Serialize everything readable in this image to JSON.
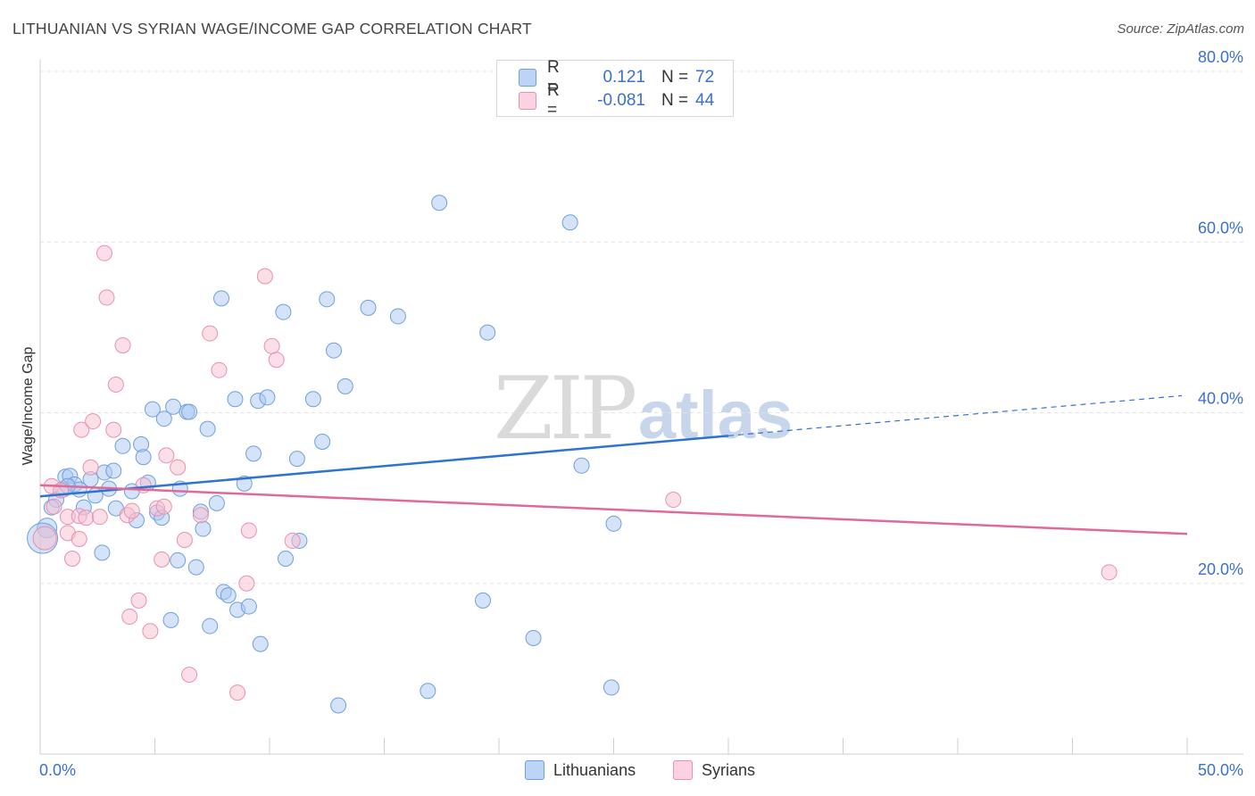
{
  "title": "LITHUANIAN VS SYRIAN WAGE/INCOME GAP CORRELATION CHART",
  "source": "Source: ZipAtlas.com",
  "watermark": {
    "zip": "ZIP",
    "atlas": "atlas"
  },
  "legend": {
    "series": [
      {
        "r_label": "R =",
        "r_value": "0.121",
        "n_label": "N =",
        "n_value": "72"
      },
      {
        "r_label": "R =",
        "r_value": "-0.081",
        "n_label": "N =",
        "n_value": "44"
      }
    ]
  },
  "bottom_legend": [
    "Lithuanians",
    "Syrians"
  ],
  "colors": {
    "lith_fill": "#a9c8f2",
    "lith_stroke": "#6f9fdc",
    "lith_line": "#2e72d2",
    "syr_fill": "#f7bfd0",
    "syr_stroke": "#ea8fae",
    "syr_line": "#e0699a",
    "axis_text": "#3a6fd2",
    "grid": "#e3e3e3"
  },
  "chart_data": {
    "type": "scatter",
    "title": "LITHUANIAN VS SYRIAN WAGE/INCOME GAP CORRELATION CHART",
    "xlabel": "",
    "ylabel": "Wage/Income Gap",
    "xlim": [
      0,
      50
    ],
    "ylim": [
      0,
      80
    ],
    "x_tick_labels": [
      "0.0%",
      "50.0%"
    ],
    "y_ticks": [
      20,
      40,
      60,
      80
    ],
    "y_tick_labels": [
      "20.0%",
      "40.0%",
      "60.0%",
      "80.0%"
    ],
    "grid": true,
    "legend_position": "top-center",
    "series": [
      {
        "name": "Lithuanians",
        "r": 0.121,
        "n": 72,
        "trend": {
          "x0": 0,
          "y0": 30.2,
          "x1": 30,
          "y1": 37.3,
          "dashed_to_x": 50,
          "dashed_to_y": 42.0
        },
        "points": [
          [
            0.3,
            26.5
          ],
          [
            0.7,
            29.8
          ],
          [
            1.0,
            31.0
          ],
          [
            1.1,
            32.5
          ],
          [
            1.3,
            32.6
          ],
          [
            1.5,
            31.6
          ],
          [
            1.7,
            31.0
          ],
          [
            1.9,
            28.9
          ],
          [
            2.2,
            32.2
          ],
          [
            2.4,
            30.3
          ],
          [
            2.7,
            23.6
          ],
          [
            2.8,
            33.0
          ],
          [
            3.2,
            33.2
          ],
          [
            3.3,
            28.8
          ],
          [
            3.6,
            36.1
          ],
          [
            4.0,
            30.8
          ],
          [
            4.2,
            27.4
          ],
          [
            4.4,
            36.3
          ],
          [
            4.5,
            34.8
          ],
          [
            4.7,
            31.8
          ],
          [
            4.9,
            40.4
          ],
          [
            5.1,
            28.3
          ],
          [
            5.3,
            27.7
          ],
          [
            5.4,
            39.3
          ],
          [
            5.7,
            15.7
          ],
          [
            5.8,
            40.7
          ],
          [
            6.0,
            22.7
          ],
          [
            6.1,
            31.1
          ],
          [
            6.4,
            40.1
          ],
          [
            6.5,
            40.1
          ],
          [
            6.8,
            21.9
          ],
          [
            7.0,
            28.4
          ],
          [
            7.1,
            26.4
          ],
          [
            7.3,
            38.1
          ],
          [
            7.4,
            15.0
          ],
          [
            7.7,
            29.4
          ],
          [
            7.9,
            53.4
          ],
          [
            8.0,
            19.0
          ],
          [
            8.2,
            18.6
          ],
          [
            8.5,
            41.6
          ],
          [
            8.6,
            16.9
          ],
          [
            8.9,
            31.7
          ],
          [
            9.1,
            17.3
          ],
          [
            9.3,
            35.2
          ],
          [
            9.5,
            41.4
          ],
          [
            9.6,
            12.9
          ],
          [
            9.9,
            41.8
          ],
          [
            10.6,
            51.8
          ],
          [
            10.7,
            22.9
          ],
          [
            11.2,
            34.6
          ],
          [
            11.3,
            25.0
          ],
          [
            11.9,
            41.6
          ],
          [
            12.3,
            36.6
          ],
          [
            12.5,
            53.3
          ],
          [
            12.8,
            47.3
          ],
          [
            13.0,
            5.7
          ],
          [
            13.3,
            43.1
          ],
          [
            14.3,
            52.3
          ],
          [
            15.6,
            51.3
          ],
          [
            16.9,
            7.4
          ],
          [
            17.4,
            64.6
          ],
          [
            19.5,
            49.4
          ],
          [
            19.3,
            18.0
          ],
          [
            21.5,
            13.6
          ],
          [
            23.1,
            62.3
          ],
          [
            23.6,
            33.8
          ],
          [
            24.9,
            7.8
          ],
          [
            25.0,
            27.0
          ],
          [
            0.1,
            25.3
          ],
          [
            3.0,
            31.1
          ],
          [
            1.2,
            31.4
          ],
          [
            0.5,
            28.9
          ]
        ]
      },
      {
        "name": "Syrians",
        "r": -0.081,
        "n": 44,
        "trend": {
          "x0": 0,
          "y0": 31.5,
          "x1": 50,
          "y1": 25.8
        },
        "points": [
          [
            0.2,
            25.3
          ],
          [
            0.5,
            31.4
          ],
          [
            0.6,
            29.0
          ],
          [
            0.9,
            30.9
          ],
          [
            1.2,
            27.8
          ],
          [
            1.2,
            25.9
          ],
          [
            1.4,
            22.9
          ],
          [
            1.7,
            27.9
          ],
          [
            1.7,
            25.2
          ],
          [
            1.8,
            38.0
          ],
          [
            2.0,
            27.7
          ],
          [
            2.2,
            33.6
          ],
          [
            2.3,
            39.0
          ],
          [
            2.6,
            27.8
          ],
          [
            2.8,
            58.7
          ],
          [
            2.9,
            53.5
          ],
          [
            3.2,
            38.0
          ],
          [
            3.3,
            43.3
          ],
          [
            3.6,
            47.9
          ],
          [
            3.8,
            28.0
          ],
          [
            3.9,
            16.1
          ],
          [
            4.0,
            28.5
          ],
          [
            4.3,
            18.0
          ],
          [
            4.5,
            31.5
          ],
          [
            4.8,
            14.4
          ],
          [
            5.1,
            28.8
          ],
          [
            5.3,
            22.8
          ],
          [
            5.4,
            29.0
          ],
          [
            5.5,
            35.0
          ],
          [
            6.0,
            33.6
          ],
          [
            6.3,
            25.1
          ],
          [
            6.5,
            9.3
          ],
          [
            7.0,
            28.0
          ],
          [
            7.4,
            49.3
          ],
          [
            7.8,
            45.0
          ],
          [
            8.6,
            7.2
          ],
          [
            9.0,
            20.0
          ],
          [
            9.1,
            26.2
          ],
          [
            9.8,
            56.0
          ],
          [
            10.1,
            47.8
          ],
          [
            10.3,
            46.2
          ],
          [
            11.0,
            25.0
          ],
          [
            27.6,
            29.8
          ],
          [
            46.6,
            21.3
          ]
        ]
      }
    ]
  }
}
